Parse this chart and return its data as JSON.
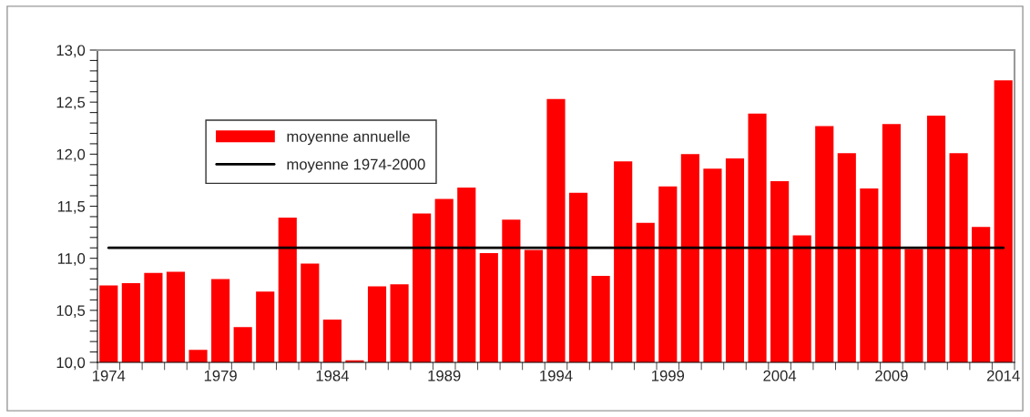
{
  "chart_data": {
    "type": "bar",
    "categories": [
      "1974",
      null,
      null,
      null,
      null,
      "1979",
      null,
      null,
      null,
      null,
      "1984",
      null,
      null,
      null,
      null,
      "1989",
      null,
      null,
      null,
      null,
      "1994",
      null,
      null,
      null,
      null,
      "1999",
      null,
      null,
      null,
      null,
      "2004",
      null,
      null,
      null,
      null,
      "2009",
      null,
      null,
      null,
      null,
      "2014"
    ],
    "series": [
      {
        "name": "moyenne annuelle",
        "color": "#ff0000",
        "values": [
          10.74,
          10.76,
          10.86,
          10.87,
          10.12,
          10.8,
          10.34,
          10.68,
          11.39,
          10.95,
          10.41,
          10.02,
          10.73,
          10.75,
          11.43,
          11.57,
          11.68,
          11.05,
          11.37,
          11.08,
          12.53,
          11.63,
          10.83,
          11.93,
          11.34,
          11.69,
          12.0,
          11.86,
          11.96,
          12.39,
          11.74,
          11.22,
          12.27,
          12.01,
          11.67,
          12.29,
          11.09,
          12.37,
          12.01,
          11.3,
          12.71
        ]
      }
    ],
    "ref_lines": [
      {
        "axis": "y",
        "value": 11.1,
        "label": "moyenne 1974-2000",
        "color": "#000000",
        "line_style": "solid"
      }
    ],
    "ylim": [
      10,
      13
    ],
    "yticks": [
      {
        "value": 10,
        "label": "10,0"
      },
      {
        "value": 10.1,
        "label": null
      },
      {
        "value": 10.2,
        "label": null
      },
      {
        "value": 10.3,
        "label": null
      },
      {
        "value": 10.4,
        "label": null
      },
      {
        "value": 10.5,
        "label": "10,5"
      },
      {
        "value": 10.6,
        "label": null
      },
      {
        "value": 10.7,
        "label": null
      },
      {
        "value": 10.8,
        "label": null
      },
      {
        "value": 10.9,
        "label": null
      },
      {
        "value": 11,
        "label": "11,0"
      },
      {
        "value": 11.1,
        "label": null
      },
      {
        "value": 11.2,
        "label": null
      },
      {
        "value": 11.3,
        "label": null
      },
      {
        "value": 11.4,
        "label": null
      },
      {
        "value": 11.5,
        "label": "11,5"
      },
      {
        "value": 11.6,
        "label": null
      },
      {
        "value": 11.7,
        "label": null
      },
      {
        "value": 11.8,
        "label": null
      },
      {
        "value": 11.9,
        "label": null
      },
      {
        "value": 12,
        "label": "12,0"
      },
      {
        "value": 12.1,
        "label": null
      },
      {
        "value": 12.2,
        "label": null
      },
      {
        "value": 12.3,
        "label": null
      },
      {
        "value": 12.4,
        "label": null
      },
      {
        "value": 12.5,
        "label": "12,5"
      },
      {
        "value": 12.6,
        "label": null
      },
      {
        "value": 12.7,
        "label": null
      },
      {
        "value": 12.8,
        "label": null
      },
      {
        "value": 12.9,
        "label": null
      },
      {
        "value": 13,
        "label": "13,0"
      }
    ],
    "grid": false,
    "legend": "top left"
  }
}
